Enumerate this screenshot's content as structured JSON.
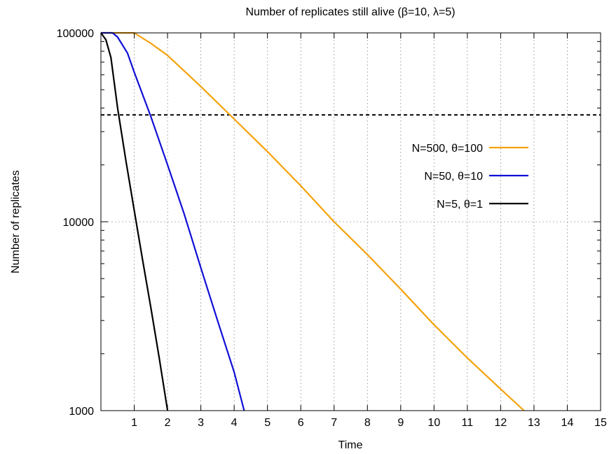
{
  "chart_data": {
    "type": "line",
    "title": "Number of replicates still alive (β=10, λ=5)",
    "xlabel": "Time",
    "ylabel": "Number of replicates",
    "xlim": [
      0,
      15
    ],
    "ylim": [
      1000,
      100000
    ],
    "yscale": "log",
    "grid": true,
    "legend_position": "right-middle",
    "x_ticks": [
      1,
      2,
      3,
      4,
      5,
      6,
      7,
      8,
      9,
      10,
      11,
      12,
      13,
      14,
      15
    ],
    "x_tick_labels": [
      "1",
      "2",
      "3",
      "4",
      "5",
      "6",
      "7",
      "8",
      "9",
      "10",
      "11",
      "12",
      "13",
      "14",
      "15"
    ],
    "y_ticks": [
      1000,
      10000,
      100000
    ],
    "y_tick_labels": [
      "1000",
      "10000",
      "100000"
    ],
    "reference_line": {
      "y": 36800,
      "style": "dashed",
      "color": "#000000"
    },
    "series": [
      {
        "name": "N=500, θ=100",
        "color": "#f5a20c",
        "points": [
          [
            0,
            100000
          ],
          [
            1.0,
            100000
          ],
          [
            1.5,
            88000
          ],
          [
            2.0,
            76000
          ],
          [
            3.0,
            52000
          ],
          [
            4.0,
            35000
          ],
          [
            5.0,
            23500
          ],
          [
            6.0,
            15500
          ],
          [
            7.0,
            10000
          ],
          [
            8.0,
            6700
          ],
          [
            9.0,
            4400
          ],
          [
            10.0,
            2850
          ],
          [
            11.0,
            1900
          ],
          [
            12.0,
            1300
          ],
          [
            12.7,
            1000
          ]
        ]
      },
      {
        "name": "N=50, θ=10",
        "color": "#0f0fd6",
        "points": [
          [
            0,
            100000
          ],
          [
            0.35,
            100000
          ],
          [
            0.5,
            95000
          ],
          [
            0.8,
            78000
          ],
          [
            1.0,
            62000
          ],
          [
            1.5,
            36000
          ],
          [
            2.0,
            20000
          ],
          [
            2.5,
            11000
          ],
          [
            3.0,
            5700
          ],
          [
            3.5,
            3000
          ],
          [
            4.0,
            1600
          ],
          [
            4.3,
            1000
          ]
        ]
      },
      {
        "name": "N=5, θ=1",
        "color": "#000000",
        "points": [
          [
            0,
            100000
          ],
          [
            0.15,
            92000
          ],
          [
            0.3,
            74000
          ],
          [
            0.5,
            40000
          ],
          [
            0.75,
            21000
          ],
          [
            1.0,
            11500
          ],
          [
            1.25,
            6300
          ],
          [
            1.5,
            3500
          ],
          [
            1.75,
            1900
          ],
          [
            2.0,
            1000
          ]
        ]
      }
    ]
  }
}
